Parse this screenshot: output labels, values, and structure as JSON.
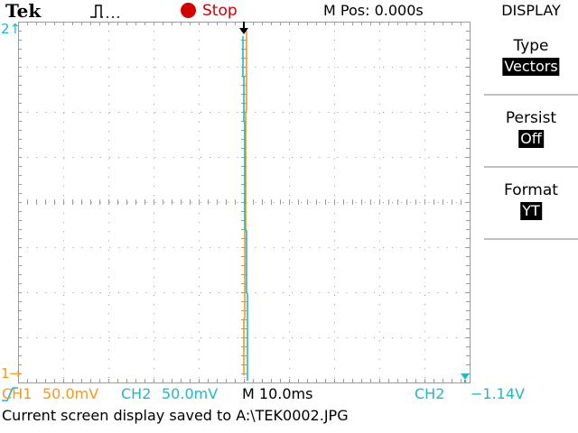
{
  "status": {
    "brand": "Tek",
    "run_state": "Stop",
    "m_pos": "M Pos: 0.000s"
  },
  "readouts": {
    "ch1_label": "CH1",
    "ch1_scale": "50.0mV",
    "ch2_label": "CH2",
    "ch2_scale": "50.0mV",
    "timebase": "M 10.0ms",
    "trigger_source": "CH2",
    "trigger_level": "−1.14V",
    "ch1_marker": "1",
    "ch2_marker": "2"
  },
  "message": "Current screen display saved to A:\\TEK0002.JPG",
  "menu": {
    "title": "DISPLAY",
    "items": [
      {
        "label": "Type",
        "value": "Vectors"
      },
      {
        "label": "Persist",
        "value": "Off"
      },
      {
        "label": "Format",
        "value": "YT"
      }
    ]
  },
  "colors": {
    "ch1": "#f39a1f",
    "ch2": "#22b7c8",
    "stop": "#d00000"
  },
  "icons": {
    "trigger_status": "pulse-waveform-icon",
    "trigger_position": "trigger-position-arrow-icon",
    "trigger_level": "trigger-level-arrow-icon",
    "trigger_slope": "rising-edge-icon"
  }
}
